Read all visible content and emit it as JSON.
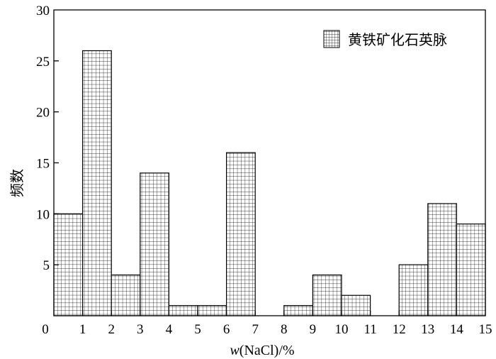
{
  "chart_data": {
    "type": "bar",
    "series": [
      {
        "name": "黄铁矿化石英脉",
        "bins": [
          {
            "x0": 0,
            "x1": 1,
            "value": 10
          },
          {
            "x0": 1,
            "x1": 2,
            "value": 26
          },
          {
            "x0": 2,
            "x1": 3,
            "value": 4
          },
          {
            "x0": 3,
            "x1": 4,
            "value": 14
          },
          {
            "x0": 4,
            "x1": 5,
            "value": 1
          },
          {
            "x0": 5,
            "x1": 6,
            "value": 1
          },
          {
            "x0": 6,
            "x1": 7,
            "value": 16
          },
          {
            "x0": 7,
            "x1": 8,
            "value": 0
          },
          {
            "x0": 8,
            "x1": 9,
            "value": 1
          },
          {
            "x0": 9,
            "x1": 10,
            "value": 4
          },
          {
            "x0": 10,
            "x1": 11,
            "value": 2
          },
          {
            "x0": 11,
            "x1": 12,
            "value": 0
          },
          {
            "x0": 12,
            "x1": 13,
            "value": 5
          },
          {
            "x0": 13,
            "x1": 14,
            "value": 11
          },
          {
            "x0": 14,
            "x1": 15,
            "value": 9
          }
        ]
      }
    ],
    "xlabel_var": "w",
    "xlabel_rest": "(NaCl)/%",
    "ylabel": "频数",
    "xlim": [
      0,
      15
    ],
    "ylim": [
      0,
      30
    ],
    "xticks": [
      0,
      1,
      2,
      3,
      4,
      5,
      6,
      7,
      8,
      9,
      10,
      11,
      12,
      13,
      14,
      15
    ],
    "yticks": [
      5,
      10,
      15,
      20,
      25,
      30
    ],
    "origin_label": "0",
    "grid": false,
    "legend_position": "top-right",
    "bar_pattern": "grid-hatch",
    "colors": {
      "bar_fill": "#ffffff",
      "hatch": "#000000",
      "axis": "#000000"
    }
  }
}
